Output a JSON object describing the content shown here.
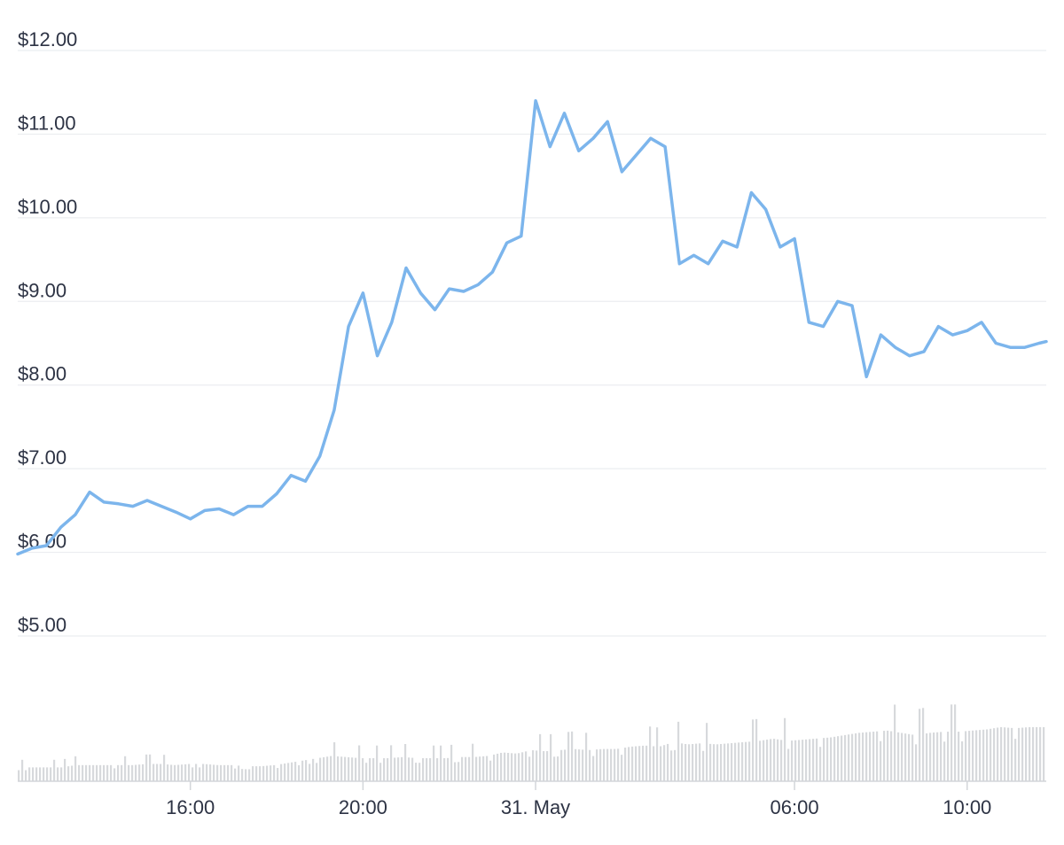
{
  "chart_data": {
    "type": "line",
    "title": "",
    "xlabel": "",
    "ylabel": "",
    "ylim": [
      5,
      12
    ],
    "y_ticks": [
      "$5.00",
      "$6.00",
      "$7.00",
      "$8.00",
      "$9.00",
      "$10.00",
      "$11.00",
      "$12.00"
    ],
    "y_tick_values": [
      5,
      6,
      7,
      8,
      9,
      10,
      11,
      12
    ],
    "x_range": [
      "30 May 12:00",
      "31 May 11:50"
    ],
    "x_ticks": [
      {
        "label": "16:00",
        "time": "30 May 16:00"
      },
      {
        "label": "20:00",
        "time": "30 May 20:00"
      },
      {
        "label": "31. May",
        "time": "31 May 00:00"
      },
      {
        "label": "06:00",
        "time": "31 May 06:00"
      },
      {
        "label": "10:00",
        "time": "31 May 10:00"
      }
    ],
    "grid": true,
    "legend": "none",
    "colors": {
      "price_line": "#7cb5ec",
      "volume_bar": "#d7d9dc",
      "grid": "#ebedf0"
    },
    "series": [
      {
        "type": "line",
        "x": [
          "30 May 12:00",
          "30 May 12:20",
          "30 May 12:40",
          "30 May 13:00",
          "30 May 13:20",
          "30 May 13:40",
          "30 May 14:00",
          "30 May 14:20",
          "30 May 14:40",
          "30 May 15:00",
          "30 May 15:20",
          "30 May 15:40",
          "30 May 16:00",
          "30 May 16:20",
          "30 May 16:40",
          "30 May 17:00",
          "30 May 17:20",
          "30 May 17:40",
          "30 May 18:00",
          "30 May 18:20",
          "30 May 18:40",
          "30 May 19:00",
          "30 May 19:20",
          "30 May 19:40",
          "30 May 20:00",
          "30 May 20:20",
          "30 May 20:40",
          "30 May 21:00",
          "30 May 21:20",
          "30 May 21:40",
          "30 May 22:00",
          "30 May 22:20",
          "30 May 22:40",
          "30 May 23:00",
          "30 May 23:20",
          "30 May 23:40",
          "31 May 00:00",
          "31 May 00:20",
          "31 May 00:40",
          "31 May 01:00",
          "31 May 01:20",
          "31 May 01:40",
          "31 May 02:00",
          "31 May 02:20",
          "31 May 02:40",
          "31 May 03:00",
          "31 May 03:20",
          "31 May 03:40",
          "31 May 04:00",
          "31 May 04:20",
          "31 May 04:40",
          "31 May 05:00",
          "31 May 05:20",
          "31 May 05:40",
          "31 May 06:00",
          "31 May 06:20",
          "31 May 06:40",
          "31 May 07:00",
          "31 May 07:20",
          "31 May 07:40",
          "31 May 08:00",
          "31 May 08:20",
          "31 May 08:40",
          "31 May 09:00",
          "31 May 09:20",
          "31 May 09:40",
          "31 May 10:00",
          "31 May 10:20",
          "31 May 10:40",
          "31 May 11:00",
          "31 May 11:20",
          "31 May 11:40",
          "31 May 11:50"
        ],
        "values": [
          5.98,
          6.05,
          6.08,
          6.3,
          6.45,
          6.72,
          6.6,
          6.58,
          6.55,
          6.62,
          6.55,
          6.48,
          6.4,
          6.5,
          6.52,
          6.45,
          6.55,
          6.55,
          6.7,
          6.92,
          6.85,
          7.15,
          7.7,
          8.7,
          9.1,
          8.35,
          8.75,
          9.4,
          9.1,
          8.9,
          9.15,
          9.12,
          9.2,
          9.35,
          9.7,
          9.78,
          11.4,
          10.85,
          11.25,
          10.8,
          10.95,
          11.15,
          10.55,
          10.75,
          10.95,
          10.85,
          9.45,
          9.55,
          9.45,
          9.72,
          9.65,
          10.3,
          10.1,
          9.65,
          9.75,
          8.75,
          8.7,
          9.0,
          8.95,
          8.1,
          8.6,
          8.45,
          8.35,
          8.4,
          8.7,
          8.6,
          8.65,
          8.75,
          8.5,
          8.45,
          8.45,
          8.5,
          8.52
        ]
      }
    ],
    "volume": {
      "axis_labels": "none",
      "relative_values": [
        0.12,
        0.12,
        0.12,
        0.12,
        0.14,
        0.14,
        0.14,
        0.14,
        0.14,
        0.15,
        0.15,
        0.14,
        0.15,
        0.15,
        0.14,
        0.14,
        0.13,
        0.13,
        0.14,
        0.16,
        0.18,
        0.2,
        0.22,
        0.21,
        0.2,
        0.2,
        0.2,
        0.21,
        0.2,
        0.2,
        0.2,
        0.21,
        0.21,
        0.22,
        0.25,
        0.24,
        0.27,
        0.26,
        0.27,
        0.28,
        0.27,
        0.28,
        0.28,
        0.3,
        0.31,
        0.3,
        0.34,
        0.32,
        0.33,
        0.32,
        0.33,
        0.34,
        0.35,
        0.37,
        0.35,
        0.36,
        0.37,
        0.38,
        0.4,
        0.42,
        0.43,
        0.44,
        0.42,
        0.4,
        0.42,
        0.43,
        0.43,
        0.44,
        0.45,
        0.47,
        0.46,
        0.47,
        0.47
      ]
    }
  }
}
